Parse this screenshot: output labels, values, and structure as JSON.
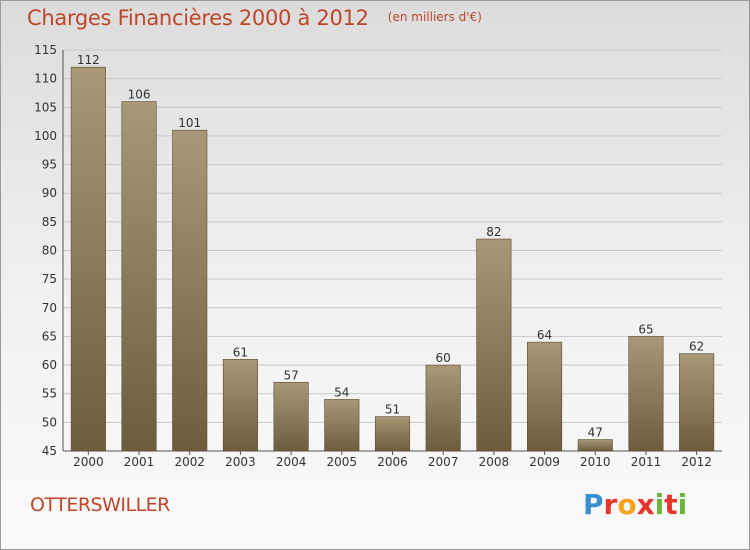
{
  "header": {
    "title": "Charges Financières 2000 à 2012",
    "subtitle": "(en milliers d'€)"
  },
  "footer": {
    "commune": "OTTERSWILLER",
    "brand": "Proxiti"
  },
  "colors": {
    "accent_text": "#c0462a",
    "bar_top": "#a89878",
    "bar_bottom": "#6d5c3e",
    "grid": "#c8c8c8"
  },
  "chart_data": {
    "type": "bar",
    "title": "Charges Financières 2000 à 2012",
    "subtitle": "(en milliers d'€)",
    "xlabel": "",
    "ylabel": "",
    "categories": [
      "2000",
      "2001",
      "2002",
      "2003",
      "2004",
      "2005",
      "2006",
      "2007",
      "2008",
      "2009",
      "2010",
      "2011",
      "2012"
    ],
    "values": [
      112,
      106,
      101,
      61,
      57,
      54,
      51,
      60,
      82,
      64,
      47,
      65,
      62
    ],
    "ylim": [
      45,
      115
    ],
    "yticks": [
      45,
      50,
      55,
      60,
      65,
      70,
      75,
      80,
      85,
      90,
      95,
      100,
      105,
      110,
      115
    ],
    "grid": true,
    "legend": "none",
    "data_labels": true
  }
}
